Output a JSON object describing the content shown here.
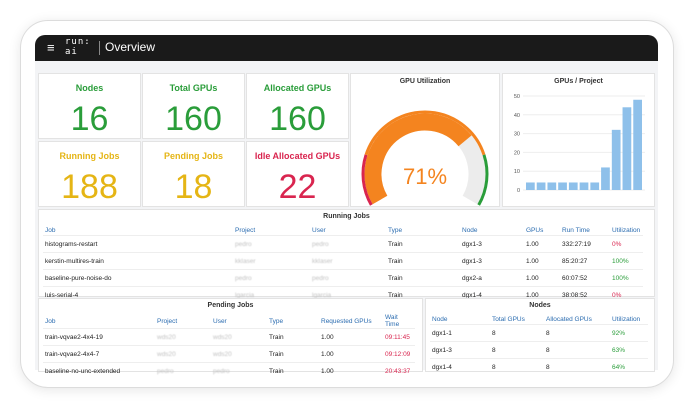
{
  "topbar": {
    "menu_icon": "hamburger-icon",
    "logo_line1": "run:",
    "logo_line2": "ai",
    "title": "Overview"
  },
  "stats": {
    "nodes": {
      "label": "Nodes",
      "value": "16",
      "color": "#2a9d3a"
    },
    "total_gpus": {
      "label": "Total GPUs",
      "value": "160",
      "color": "#2a9d3a"
    },
    "allocated_gpus": {
      "label": "Allocated GPUs",
      "value": "160",
      "color": "#2a9d3a"
    },
    "running_jobs": {
      "label": "Running Jobs",
      "value": "188",
      "color": "#e5b515"
    },
    "pending_jobs": {
      "label": "Pending Jobs",
      "value": "18",
      "color": "#e5b515"
    },
    "idle_allocated_gpus": {
      "label": "Idle Allocated GPUs",
      "value": "22",
      "color": "#d9254f"
    }
  },
  "gpu_utilization": {
    "title": "GPU Utilization",
    "value_text": "71%",
    "value": 71
  },
  "chart_data": {
    "type": "bar",
    "title": "GPUs / Project",
    "ylim": [
      0,
      50
    ],
    "yticks": [
      0,
      10,
      20,
      30,
      40,
      50
    ],
    "values": [
      4,
      4,
      4,
      4,
      4,
      4,
      4,
      12,
      32,
      44,
      48
    ],
    "color": "#8ec0ea"
  },
  "running_jobs_table": {
    "title": "Running Jobs",
    "columns": [
      "Job",
      "Project",
      "User",
      "Type",
      "Node",
      "GPUs",
      "Run Time",
      "Utilization"
    ],
    "rows": [
      [
        "histograms-restart",
        "pedro",
        "pedro",
        "Train",
        "dgx1-3",
        "1.00",
        "332:27:19",
        "0%"
      ],
      [
        "kerstin-multires-train",
        "kklaser",
        "kklaser",
        "Train",
        "dgx1-3",
        "1.00",
        "85:20:27",
        "100%"
      ],
      [
        "baseline-pure-noise-do",
        "pedro",
        "pedro",
        "Train",
        "dgx2-a",
        "1.00",
        "60:07:52",
        "100%"
      ],
      [
        "luis-serial-4",
        "lgarcia",
        "lgarcia",
        "Train",
        "dgx1-4",
        "1.00",
        "38:08:52",
        "0%"
      ]
    ]
  },
  "pending_jobs_table": {
    "title": "Pending Jobs",
    "columns": [
      "Job",
      "Project",
      "User",
      "Type",
      "Requested GPUs",
      "Wait Time"
    ],
    "rows": [
      [
        "train-vqvae2-4x4-19",
        "wds20",
        "wds20",
        "Train",
        "1.00",
        "09:11:45"
      ],
      [
        "train-vqvae2-4x4-7",
        "wds20",
        "wds20",
        "Train",
        "1.00",
        "09:12:09"
      ],
      [
        "baseline-no-unc-extended",
        "pedro",
        "pedro",
        "Train",
        "1.00",
        "20:43:37"
      ]
    ]
  },
  "nodes_table": {
    "title": "Nodes",
    "columns": [
      "Node",
      "Total GPUs",
      "Allocated GPUs",
      "Utilization"
    ],
    "rows": [
      [
        "dgx1-1",
        "8",
        "8",
        "92%"
      ],
      [
        "dgx1-3",
        "8",
        "8",
        "63%"
      ],
      [
        "dgx1-4",
        "8",
        "8",
        "64%"
      ]
    ]
  }
}
